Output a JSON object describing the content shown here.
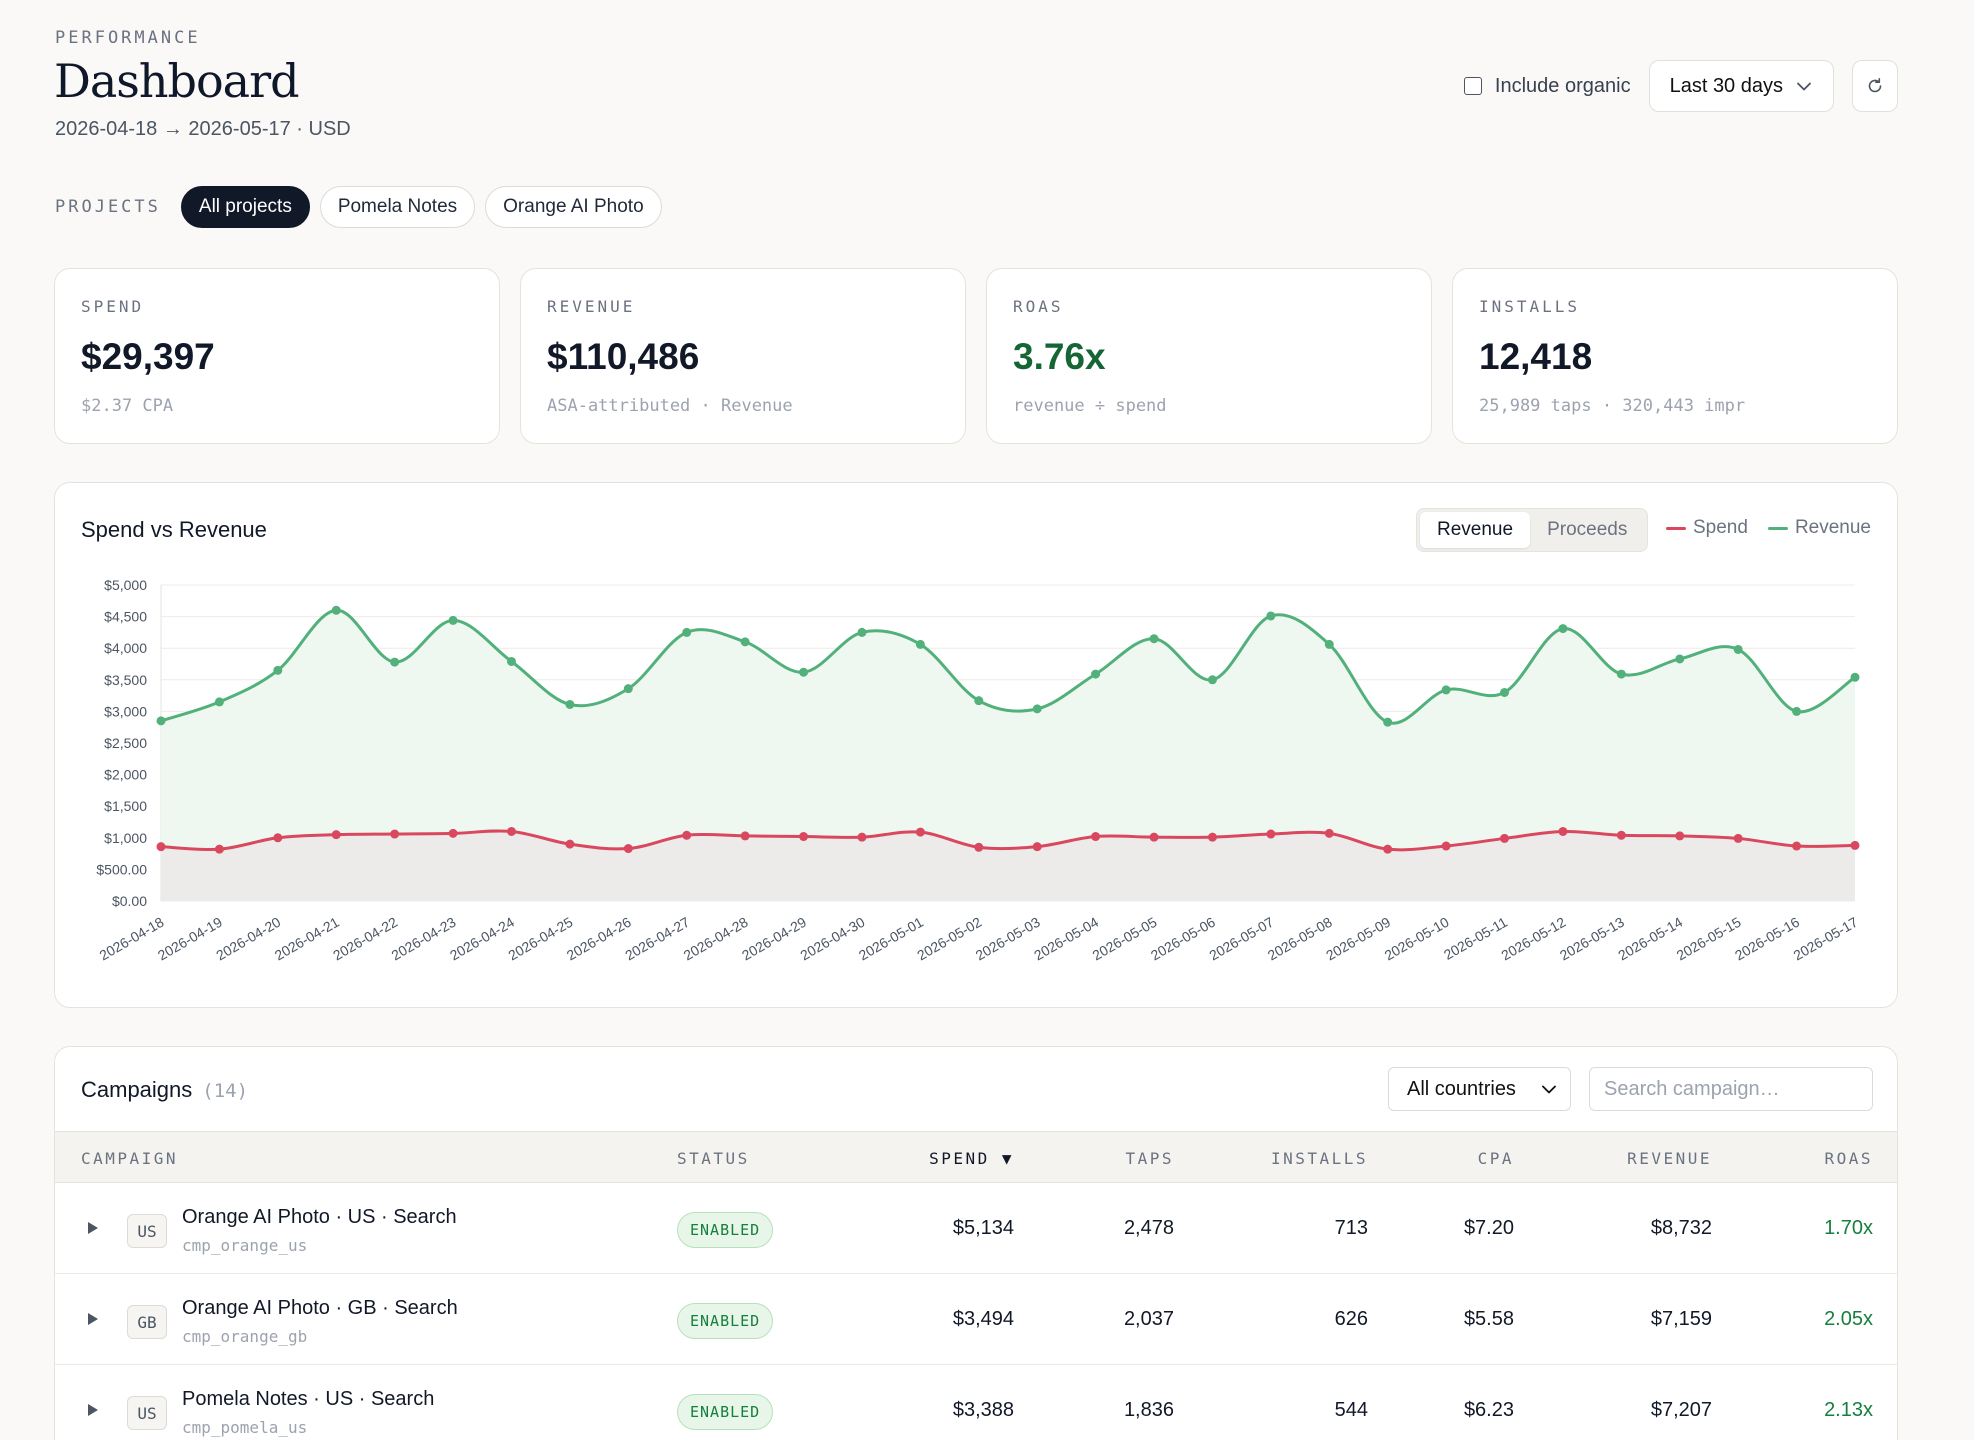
{
  "header": {
    "eyebrow": "PERFORMANCE",
    "title": "Dashboard",
    "subtitle": "2026-04-18 → 2026-05-17 · USD",
    "include_organic_label": "Include organic",
    "range_label": "Last 30 days",
    "refresh_icon": "refresh-icon"
  },
  "projects": {
    "label": "PROJECTS",
    "items": [
      "All projects",
      "Pomela Notes",
      "Orange AI Photo"
    ],
    "selected": "All projects"
  },
  "stats": [
    {
      "label": "SPEND",
      "value": "$29,397",
      "sub": "$2.37 CPA"
    },
    {
      "label": "REVENUE",
      "value": "$110,486",
      "sub": "ASA-attributed · Revenue"
    },
    {
      "label": "ROAS",
      "value": "3.76x",
      "sub": "revenue ÷ spend"
    },
    {
      "label": "INSTALLS",
      "value": "12,418",
      "sub": "25,989 taps · 320,443 impr"
    }
  ],
  "chart_panel": {
    "title": "Spend vs Revenue",
    "toggle": [
      "Revenue",
      "Proceeds"
    ],
    "toggle_selected": "Revenue",
    "legend": [
      "Spend",
      "Revenue"
    ]
  },
  "chart_data": {
    "type": "line",
    "title": "Spend vs Revenue",
    "xlabel": "",
    "ylabel": "",
    "ylim": [
      0,
      5000
    ],
    "yticks": [
      0,
      500,
      1000,
      1500,
      2000,
      2500,
      3000,
      3500,
      4000,
      4500,
      5000
    ],
    "ytick_labels": [
      "$0.00",
      "$500.00",
      "$1,000",
      "$1,500",
      "$2,000",
      "$2,500",
      "$3,000",
      "$3,500",
      "$4,000",
      "$4,500",
      "$5,000"
    ],
    "grid": true,
    "legend_position": "top-right",
    "x": [
      "2026-04-18",
      "2026-04-19",
      "2026-04-20",
      "2026-04-21",
      "2026-04-22",
      "2026-04-23",
      "2026-04-24",
      "2026-04-25",
      "2026-04-26",
      "2026-04-27",
      "2026-04-28",
      "2026-04-29",
      "2026-04-30",
      "2026-05-01",
      "2026-05-02",
      "2026-05-03",
      "2026-05-04",
      "2026-05-05",
      "2026-05-06",
      "2026-05-07",
      "2026-05-08",
      "2026-05-09",
      "2026-05-10",
      "2026-05-11",
      "2026-05-12",
      "2026-05-13",
      "2026-05-14",
      "2026-05-15",
      "2026-05-16",
      "2026-05-17"
    ],
    "series": [
      {
        "name": "Spend",
        "color": "#d9485f",
        "values": [
          860,
          820,
          1000,
          1050,
          1060,
          1070,
          1100,
          900,
          830,
          1040,
          1030,
          1020,
          1010,
          1090,
          850,
          860,
          1020,
          1010,
          1010,
          1060,
          1070,
          820,
          870,
          990,
          1100,
          1040,
          1030,
          990,
          870,
          880
        ]
      },
      {
        "name": "Revenue",
        "color": "#52b07a",
        "values": [
          2850,
          3150,
          3650,
          4600,
          3780,
          4440,
          3790,
          3110,
          3360,
          4250,
          4100,
          3620,
          4250,
          4060,
          3170,
          3040,
          3590,
          4150,
          3500,
          4510,
          4060,
          2830,
          3340,
          3300,
          4310,
          3590,
          3830,
          3980,
          3000,
          3540
        ]
      }
    ]
  },
  "campaigns": {
    "title": "Campaigns",
    "count": "(14)",
    "country_select": "All countries",
    "search_placeholder": "Search campaign…",
    "columns": [
      "CAMPAIGN",
      "STATUS",
      "SPEND ▼",
      "TAPS",
      "INSTALLS",
      "CPA",
      "REVENUE",
      "ROAS"
    ],
    "rows": [
      {
        "country": "US",
        "name": "Orange AI Photo · US · Search",
        "id": "cmp_orange_us",
        "status": "ENABLED",
        "spend": "$5,134",
        "taps": "2,478",
        "installs": "713",
        "cpa": "$7.20",
        "revenue": "$8,732",
        "roas": "1.70x"
      },
      {
        "country": "GB",
        "name": "Orange AI Photo · GB · Search",
        "id": "cmp_orange_gb",
        "status": "ENABLED",
        "spend": "$3,494",
        "taps": "2,037",
        "installs": "626",
        "cpa": "$5.58",
        "revenue": "$7,159",
        "roas": "2.05x"
      },
      {
        "country": "US",
        "name": "Pomela Notes · US · Search",
        "id": "cmp_pomela_us",
        "status": "ENABLED",
        "spend": "$3,388",
        "taps": "1,836",
        "installs": "544",
        "cpa": "$6.23",
        "revenue": "$7,207",
        "roas": "2.13x"
      }
    ]
  }
}
